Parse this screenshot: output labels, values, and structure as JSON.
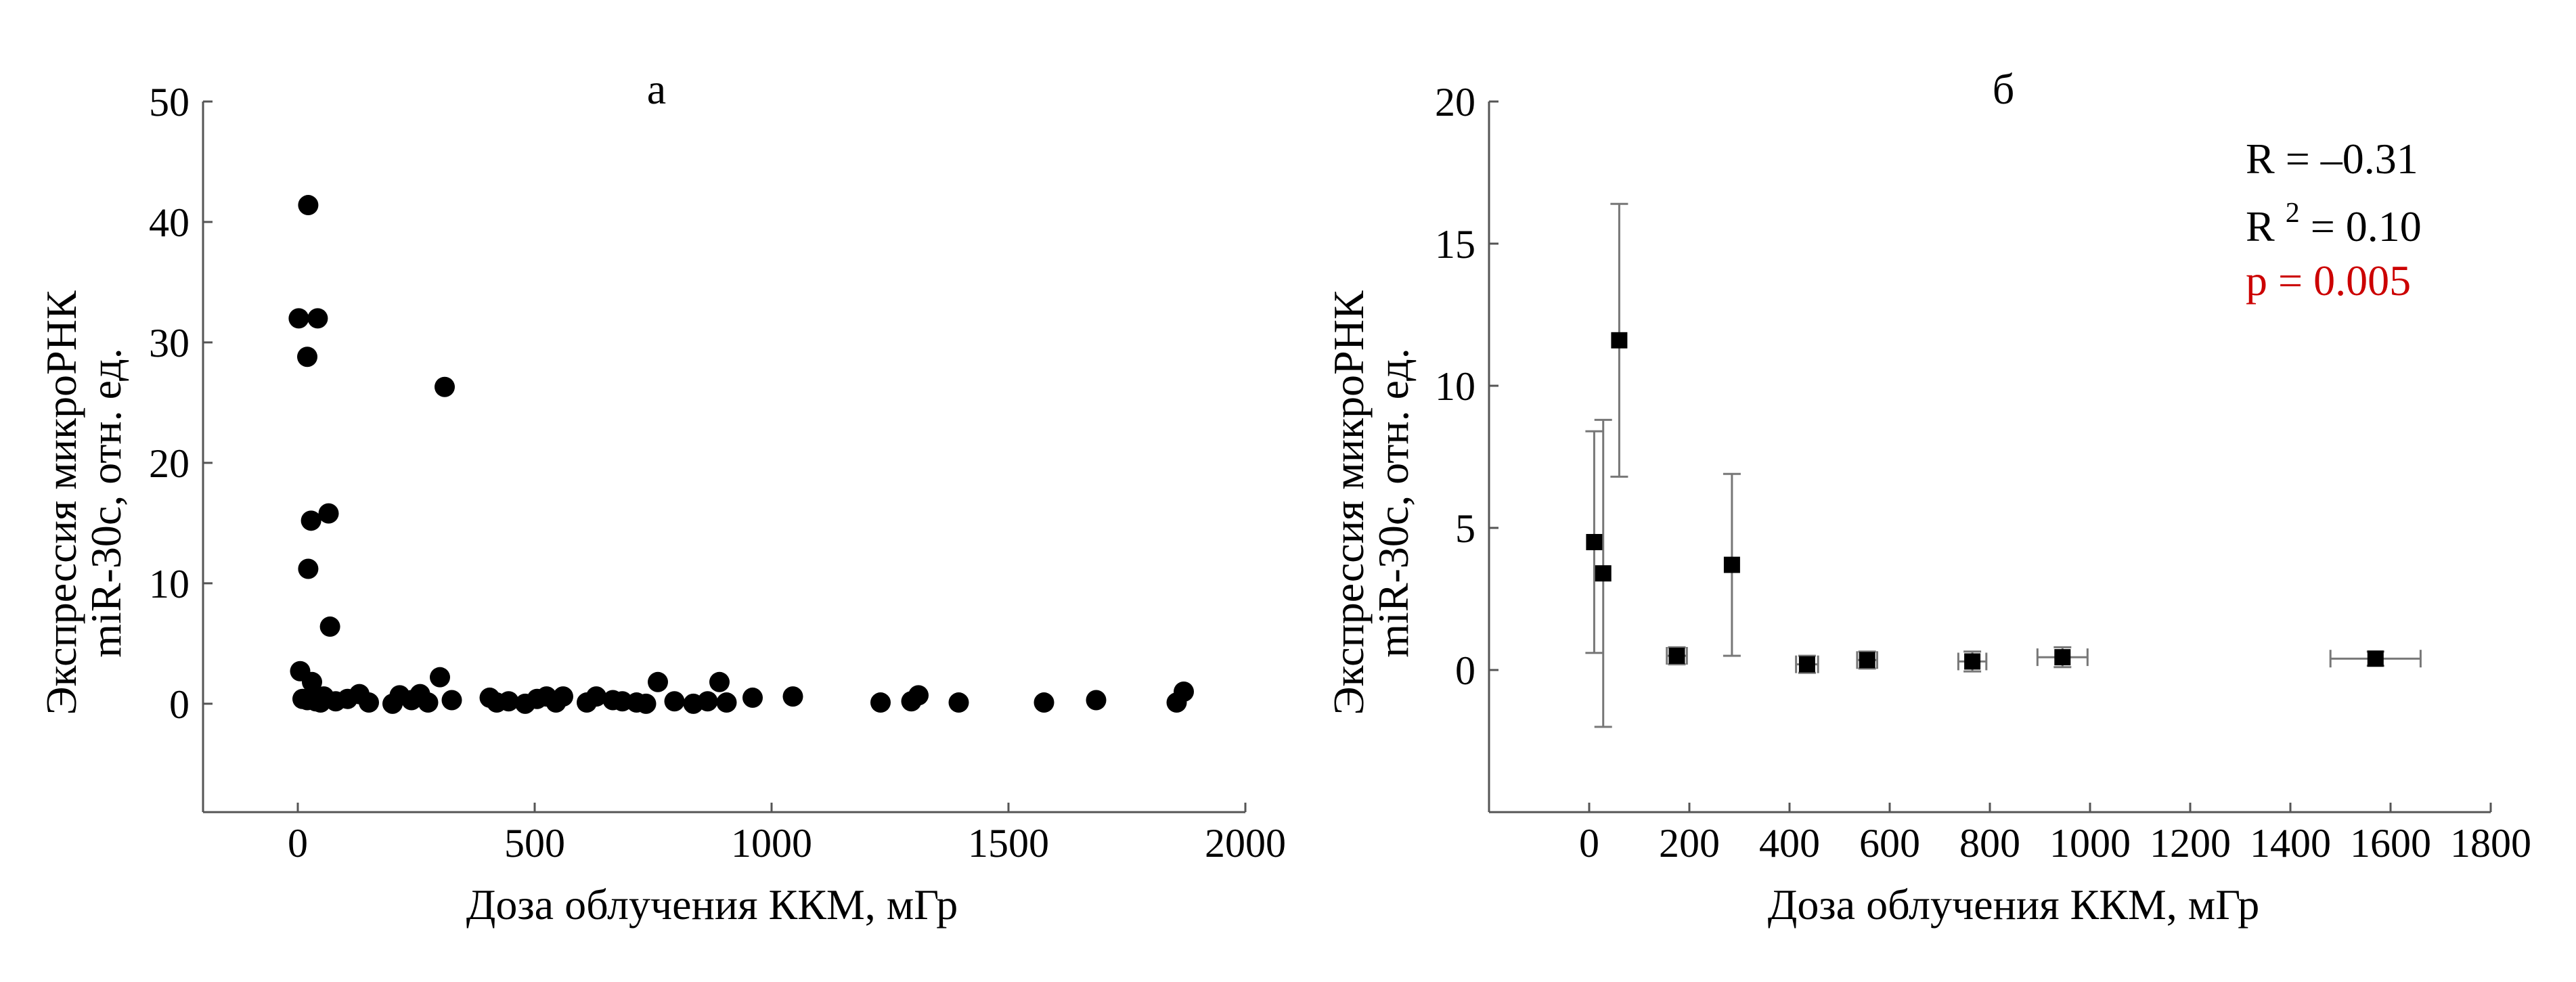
{
  "chart_data": [
    {
      "type": "scatter",
      "title": "а",
      "xlabel": "Доза облучения ККМ, мГр",
      "ylabel": [
        "Экспрессия микроРНК",
        "miR-30c, отн. ед."
      ],
      "xlim": [
        -200,
        2000
      ],
      "ylim": [
        -9,
        50
      ],
      "xticks": [
        0,
        500,
        1000,
        1500,
        2000
      ],
      "yticks": [
        0,
        10,
        20,
        30,
        40,
        50
      ],
      "xtick_labels": [
        "0",
        "500",
        "1000",
        "1500",
        "2000"
      ],
      "ytick_labels": [
        "0",
        "10",
        "20",
        "30",
        "40",
        "50"
      ],
      "grid": false,
      "marker": "circle",
      "marker_color": "#000000",
      "points": [
        [
          22,
          41.4
        ],
        [
          2,
          32.0
        ],
        [
          42,
          32.0
        ],
        [
          20,
          28.8
        ],
        [
          310,
          26.3
        ],
        [
          65,
          15.8
        ],
        [
          28,
          15.2
        ],
        [
          22,
          11.2
        ],
        [
          68,
          6.4
        ],
        [
          5,
          2.7
        ],
        [
          300,
          2.2
        ],
        [
          760,
          1.8
        ],
        [
          890,
          1.8
        ],
        [
          30,
          1.8
        ],
        [
          1870,
          1.0
        ],
        [
          10,
          0.4
        ],
        [
          20,
          0.3
        ],
        [
          38,
          0.2
        ],
        [
          48,
          0.1
        ],
        [
          55,
          0.6
        ],
        [
          80,
          0.2
        ],
        [
          105,
          0.4
        ],
        [
          130,
          0.8
        ],
        [
          150,
          0.1
        ],
        [
          200,
          0.0
        ],
        [
          215,
          0.7
        ],
        [
          240,
          0.3
        ],
        [
          258,
          0.8
        ],
        [
          275,
          0.1
        ],
        [
          325,
          0.3
        ],
        [
          405,
          0.5
        ],
        [
          420,
          0.1
        ],
        [
          445,
          0.2
        ],
        [
          480,
          0.0
        ],
        [
          505,
          0.4
        ],
        [
          525,
          0.6
        ],
        [
          545,
          0.1
        ],
        [
          560,
          0.6
        ],
        [
          610,
          0.1
        ],
        [
          630,
          0.6
        ],
        [
          665,
          0.3
        ],
        [
          685,
          0.2
        ],
        [
          715,
          0.1
        ],
        [
          735,
          0.0
        ],
        [
          795,
          0.2
        ],
        [
          835,
          0.0
        ],
        [
          865,
          0.2
        ],
        [
          905,
          0.1
        ],
        [
          960,
          0.5
        ],
        [
          1045,
          0.6
        ],
        [
          1230,
          0.1
        ],
        [
          1295,
          0.2
        ],
        [
          1310,
          0.7
        ],
        [
          1395,
          0.1
        ],
        [
          1575,
          0.1
        ],
        [
          1685,
          0.3
        ],
        [
          1855,
          0.1
        ]
      ]
    },
    {
      "type": "scatter",
      "title": "б",
      "xlabel": "Доза облучения ККМ, мГр",
      "ylabel": [
        "Экспрессия микроРНК",
        "miR-30c, отн. ед."
      ],
      "xlim": [
        -200,
        1800
      ],
      "ylim": [
        -5,
        20
      ],
      "xticks": [
        0,
        200,
        400,
        600,
        800,
        1000,
        1200,
        1400,
        1600,
        1800
      ],
      "yticks": [
        0,
        5,
        10,
        15,
        20
      ],
      "xtick_labels": [
        "0",
        "200",
        "400",
        "600",
        "800",
        "1000",
        "1200",
        "1400",
        "1600",
        "1800"
      ],
      "ytick_labels": [
        "0",
        "5",
        "10",
        "15",
        "20"
      ],
      "grid": false,
      "marker": "square",
      "marker_color": "#000000",
      "errorbar_color": "#777777",
      "points": [
        {
          "x": 10,
          "y": 4.5,
          "xerr": 0,
          "yerr": 3.9
        },
        {
          "x": 28,
          "y": 3.4,
          "xerr": 0,
          "yerr": 5.4
        },
        {
          "x": 60,
          "y": 11.6,
          "xerr": 0,
          "yerr": 4.8
        },
        {
          "x": 175,
          "y": 0.5,
          "xerr": 20,
          "yerr": 0.3
        },
        {
          "x": 285,
          "y": 3.7,
          "xerr": 0,
          "yerr": 3.2
        },
        {
          "x": 435,
          "y": 0.2,
          "xerr": 22,
          "yerr": 0.3
        },
        {
          "x": 555,
          "y": 0.35,
          "xerr": 20,
          "yerr": 0.3
        },
        {
          "x": 765,
          "y": 0.3,
          "xerr": 28,
          "yerr": 0.35
        },
        {
          "x": 945,
          "y": 0.45,
          "xerr": 50,
          "yerr": 0.35
        },
        {
          "x": 1570,
          "y": 0.4,
          "xerr": 90,
          "yerr": 0.25
        }
      ],
      "annotations": [
        {
          "base": "R = –0.31",
          "sup": "",
          "tail": "",
          "color": "#000000"
        },
        {
          "base": "R",
          "sup": "2",
          "tail": " = 0.10",
          "color": "#000000"
        },
        {
          "base": "p = 0.005",
          "sup": "",
          "tail": "",
          "color": "#cc0000"
        }
      ]
    }
  ]
}
